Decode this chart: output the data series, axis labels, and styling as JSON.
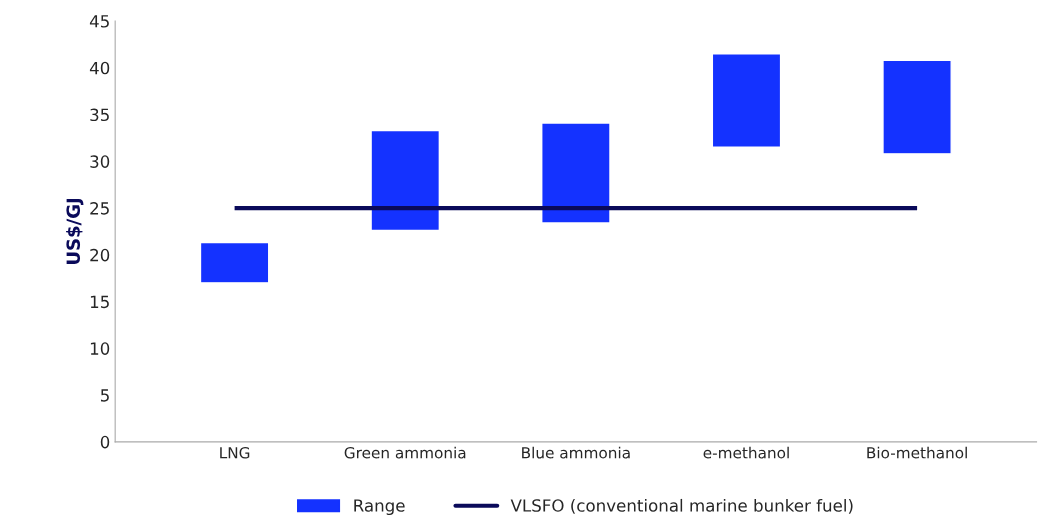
{
  "chart_data": {
    "type": "bar",
    "ylabel": "US$/GJ",
    "categories": [
      "LNG",
      "Green ammonia",
      "Blue ammonia",
      "e-methanol",
      "Bio-methanol"
    ],
    "series": [
      {
        "name": "Range",
        "color": "#1432ff",
        "base": [
          17,
          22.6,
          23.4,
          31.5,
          30.8
        ],
        "values": [
          4.3,
          10.7,
          10.7,
          10,
          10
        ]
      },
      {
        "name": "VLSFO (conventional marine bunker fuel)",
        "type": "line",
        "color": "#0a0a5a",
        "values": [
          25,
          25,
          25,
          25,
          25
        ]
      }
    ],
    "ylim": [
      0,
      45
    ],
    "yticks": [
      0,
      5,
      10,
      15,
      20,
      25,
      30,
      35,
      40,
      45
    ],
    "grid": false,
    "legend": "bottom"
  }
}
